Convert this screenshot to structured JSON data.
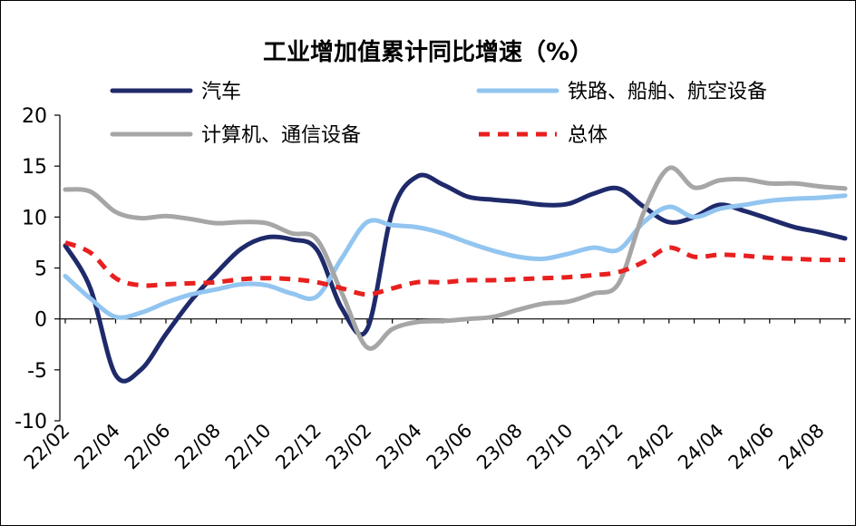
{
  "chart_data": {
    "type": "line",
    "title": "工业增加值累计同比增速（%）",
    "xlabel": "",
    "ylabel": "",
    "ylim": [
      -10,
      20
    ],
    "yticks": [
      -10,
      -5,
      0,
      5,
      10,
      15,
      20
    ],
    "grid": false,
    "legend_position": "top",
    "x_tick_labels": [
      "22/02",
      "22/04",
      "22/06",
      "22/08",
      "22/10",
      "22/12",
      "23/02",
      "23/04",
      "23/06",
      "23/08",
      "23/10",
      "23/12",
      "24/02",
      "24/04",
      "24/06",
      "24/08"
    ],
    "x": [
      "22/02",
      "22/03",
      "22/04",
      "22/05",
      "22/06",
      "22/07",
      "22/08",
      "22/09",
      "22/10",
      "22/11",
      "22/12",
      "23/01",
      "23/02",
      "23/03",
      "23/04",
      "23/05",
      "23/06",
      "23/07",
      "23/08",
      "23/09",
      "23/10",
      "23/11",
      "23/12",
      "24/01",
      "24/02",
      "24/03",
      "24/04",
      "24/05",
      "24/06",
      "24/07",
      "24/08",
      "24/09"
    ],
    "series": [
      {
        "name": "汽车",
        "color": "#1f2a6b",
        "style": "solid",
        "values": [
          7.2,
          3.0,
          -5.5,
          -5.0,
          -1.5,
          1.8,
          4.5,
          6.9,
          8.0,
          7.8,
          6.8,
          1.0,
          -1.0,
          10.5,
          14.0,
          13.2,
          12.0,
          11.7,
          11.5,
          11.2,
          11.3,
          12.3,
          12.8,
          11.0,
          9.5,
          10.0,
          11.2,
          10.6,
          9.8,
          9.0,
          8.5,
          7.9
        ]
      },
      {
        "name": "铁路、船舶、航空设备",
        "color": "#92c5f0",
        "style": "solid",
        "values": [
          4.2,
          2.0,
          0.2,
          0.6,
          1.6,
          2.4,
          2.9,
          3.4,
          3.3,
          2.5,
          2.2,
          6.0,
          9.5,
          9.2,
          9.0,
          8.4,
          7.5,
          6.7,
          6.1,
          5.9,
          6.4,
          7.0,
          6.8,
          9.5,
          11.0,
          10.0,
          10.8,
          11.2,
          11.6,
          11.8,
          11.9,
          12.1
        ]
      },
      {
        "name": "计算机、通信设备",
        "color": "#a6a6a6",
        "style": "solid",
        "values": [
          12.7,
          12.5,
          10.5,
          9.9,
          10.1,
          9.8,
          9.4,
          9.5,
          9.4,
          8.4,
          7.8,
          2.5,
          -2.8,
          -1.0,
          -0.3,
          -0.2,
          0.0,
          0.2,
          0.9,
          1.5,
          1.7,
          2.5,
          3.5,
          10.5,
          14.8,
          12.9,
          13.6,
          13.7,
          13.3,
          13.3,
          13.0,
          12.8
        ]
      },
      {
        "name": "总体",
        "color": "#e8201f",
        "style": "dashed",
        "values": [
          7.5,
          6.5,
          4.0,
          3.3,
          3.4,
          3.5,
          3.6,
          3.9,
          4.0,
          3.9,
          3.6,
          3.0,
          2.4,
          3.0,
          3.6,
          3.6,
          3.8,
          3.8,
          3.9,
          4.0,
          4.1,
          4.3,
          4.6,
          5.6,
          7.0,
          6.1,
          6.3,
          6.2,
          6.0,
          5.9,
          5.8,
          5.8
        ]
      }
    ]
  }
}
